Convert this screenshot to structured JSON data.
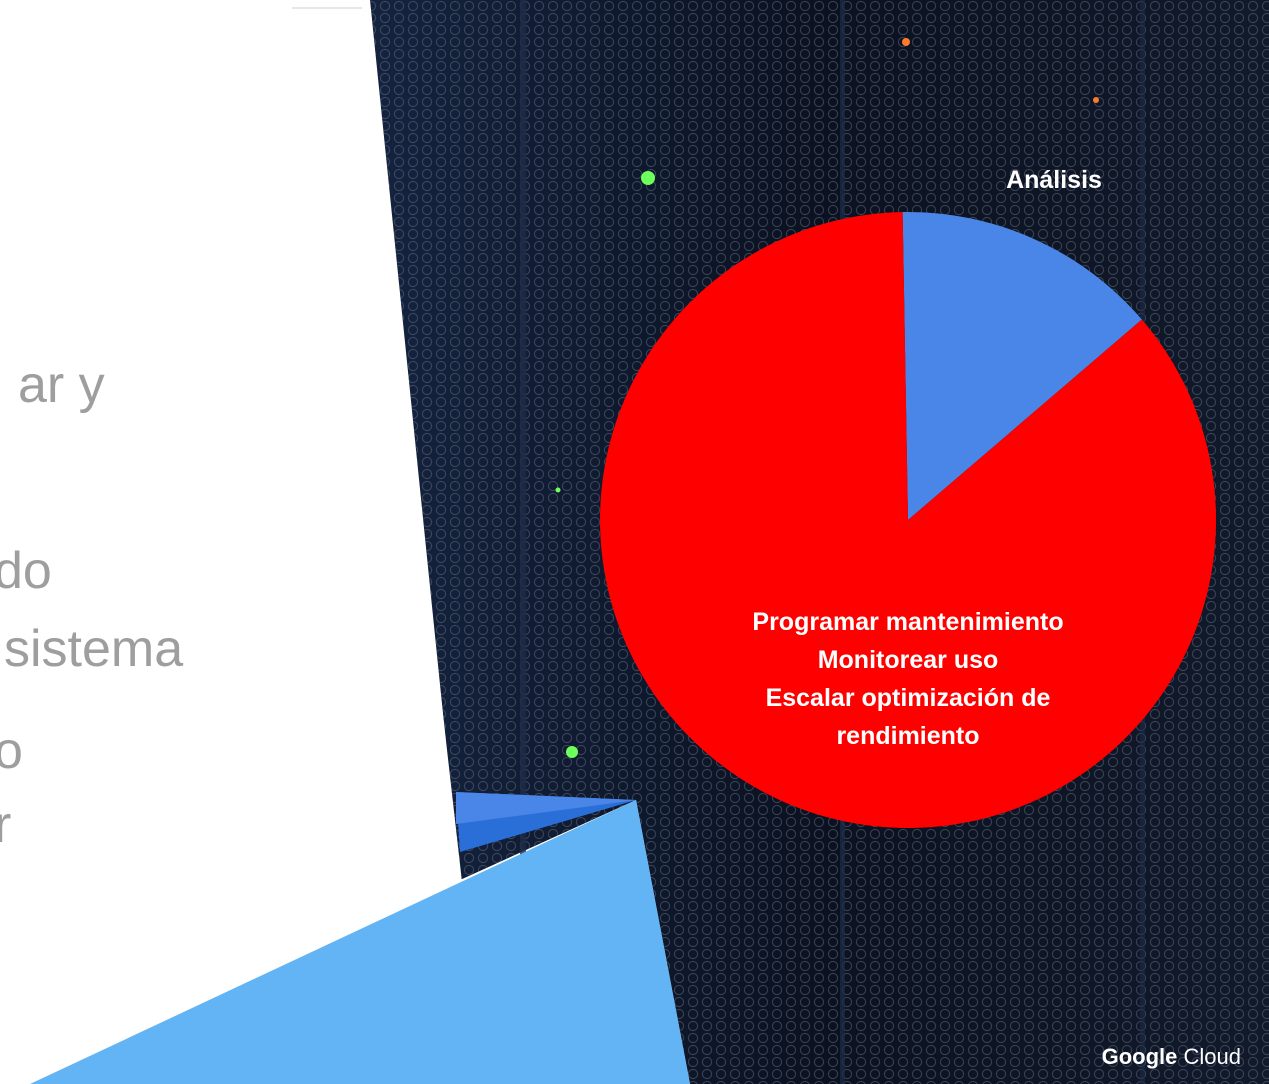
{
  "slide": {
    "bullets": [
      "ar y",
      "do",
      "sistema",
      "o",
      "r"
    ],
    "brand": {
      "name": "Google",
      "product": "Cloud"
    }
  },
  "colors": {
    "background": "#ffffff",
    "bullet_text": "#9e9e9e",
    "server_bg": "#0a0f1a",
    "accent_blue": "#4a86e8",
    "accent_light_blue": "#62b4f5",
    "accent_dark_blue": "#2a6fd8",
    "slice_analysis": "#4a86e8",
    "slice_main": "#ff0000"
  },
  "chart_data": {
    "type": "pie",
    "title": "",
    "slices": [
      {
        "label": "Análisis",
        "value": 14,
        "color": "#4a86e8"
      },
      {
        "label": "Programar mantenimiento\nMonitorear uso\nEscalar optimización de\nrendimiento",
        "value": 86,
        "color": "#ff0000"
      }
    ],
    "slice_label_lines": [
      [
        "Análisis"
      ],
      [
        "Programar mantenimiento",
        "Monitorear uso",
        "Escalar optimización de",
        "rendimiento"
      ]
    ]
  }
}
